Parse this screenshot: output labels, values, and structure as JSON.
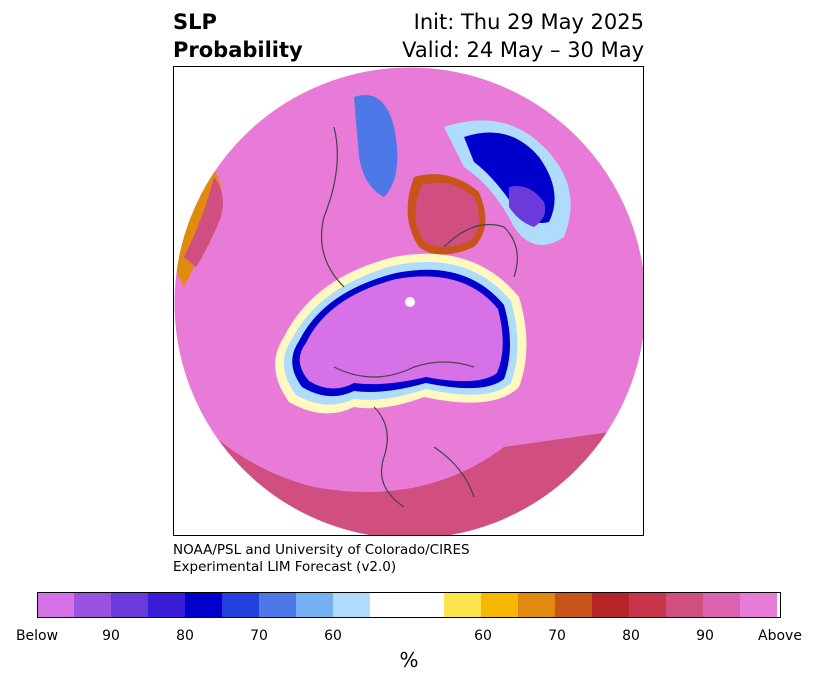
{
  "title": {
    "left_line1": "SLP",
    "left_line2": "Probability",
    "right_line1": "Init: Thu 29 May 2025",
    "right_line2": "Valid: 24 May – 30 May"
  },
  "credit": {
    "line1": "NOAA/PSL and University of Colorado/CIRES",
    "line2": "Experimental LIM Forecast (v2.0)"
  },
  "colorbar": {
    "unit_label": "%",
    "ticks": [
      "Below",
      "90",
      "80",
      "70",
      "60",
      "60",
      "70",
      "80",
      "90",
      "Above"
    ],
    "colors": [
      "#d771e8",
      "#9b52e0",
      "#6a3adb",
      "#3a1dd6",
      "#0000cc",
      "#2541dd",
      "#4c78e8",
      "#74b1f0",
      "#b0dcfb",
      "#ffffff",
      "#ffe34d",
      "#f5b800",
      "#e08a10",
      "#c9541a",
      "#b52426",
      "#c8344a",
      "#d04f80",
      "#dd62b0",
      "#e87ad8"
    ]
  },
  "map": {
    "projection": "north-polar-stereographic",
    "below_color": "#d771e8",
    "above_color": "#e87ad8"
  }
}
